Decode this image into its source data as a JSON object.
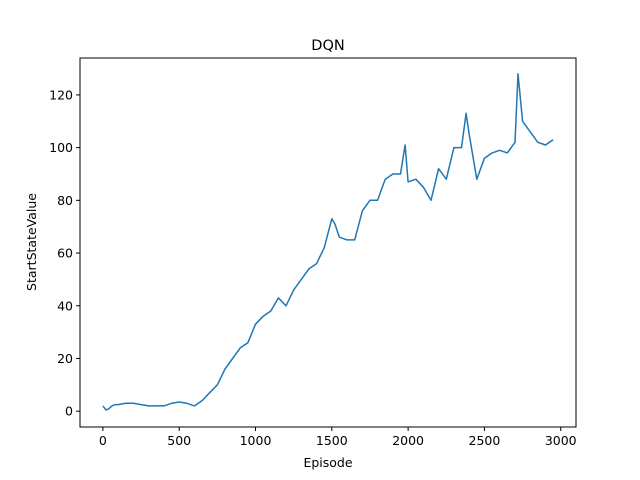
{
  "chart_data": {
    "type": "line",
    "title": "DQN",
    "xlabel": "Episode",
    "ylabel": "StartStateValue",
    "xlim": [
      -150,
      3100
    ],
    "ylim": [
      -6,
      134
    ],
    "xticks": [
      0,
      500,
      1000,
      1500,
      2000,
      2500,
      3000
    ],
    "yticks": [
      0,
      20,
      40,
      60,
      80,
      100,
      120
    ],
    "grid": false,
    "series": [
      {
        "color": "#1f77b4",
        "x": [
          0,
          20,
          40,
          60,
          80,
          100,
          150,
          200,
          250,
          300,
          350,
          400,
          450,
          500,
          550,
          600,
          650,
          700,
          750,
          800,
          850,
          900,
          950,
          1000,
          1050,
          1100,
          1150,
          1200,
          1250,
          1300,
          1350,
          1400,
          1450,
          1500,
          1520,
          1550,
          1600,
          1650,
          1700,
          1750,
          1800,
          1850,
          1900,
          1950,
          1980,
          2000,
          2050,
          2100,
          2150,
          2200,
          2250,
          2300,
          2350,
          2380,
          2400,
          2450,
          2500,
          2550,
          2600,
          2650,
          2700,
          2720,
          2750,
          2800,
          2850,
          2900,
          2950
        ],
        "y": [
          2,
          0.5,
          1,
          2,
          2.5,
          2.5,
          3,
          3,
          2.5,
          2,
          2,
          2,
          3,
          3.5,
          3,
          2,
          4,
          7,
          10,
          16,
          20,
          24,
          26,
          33,
          36,
          38,
          43,
          40,
          46,
          50,
          54,
          56,
          62,
          73,
          71,
          66,
          65,
          65,
          76,
          80,
          80,
          88,
          90,
          90,
          101,
          87,
          88,
          85,
          80,
          92,
          88,
          100,
          100,
          113,
          105,
          88,
          96,
          98,
          99,
          98,
          102,
          128,
          110,
          106,
          102,
          101,
          103
        ]
      }
    ]
  }
}
